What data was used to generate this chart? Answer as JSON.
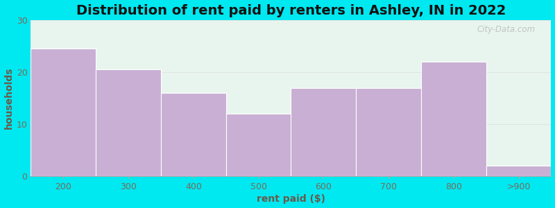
{
  "title": "Distribution of rent paid by renters in Ashley, IN in 2022",
  "xlabel": "rent paid ($)",
  "ylabel": "households",
  "categories": [
    "200",
    "300",
    "400",
    "500",
    "600",
    "700",
    "800",
    ">900"
  ],
  "values": [
    24.5,
    20.5,
    16,
    12,
    17,
    17,
    22,
    2
  ],
  "bar_color": "#c9afd4",
  "bar_edge_color": "#c9afd4",
  "bg_outer": "#00e8f0",
  "bg_inner_top": "#e8f5ee",
  "bg_inner_bottom": "#ffffff",
  "ylim": [
    0,
    30
  ],
  "yticks": [
    0,
    10,
    20,
    30
  ],
  "title_fontsize": 14,
  "axis_label_fontsize": 10,
  "tick_fontsize": 9,
  "watermark_text": "City-Data.com",
  "tick_color": "#7a6a5a",
  "label_color": "#6a5a4a"
}
